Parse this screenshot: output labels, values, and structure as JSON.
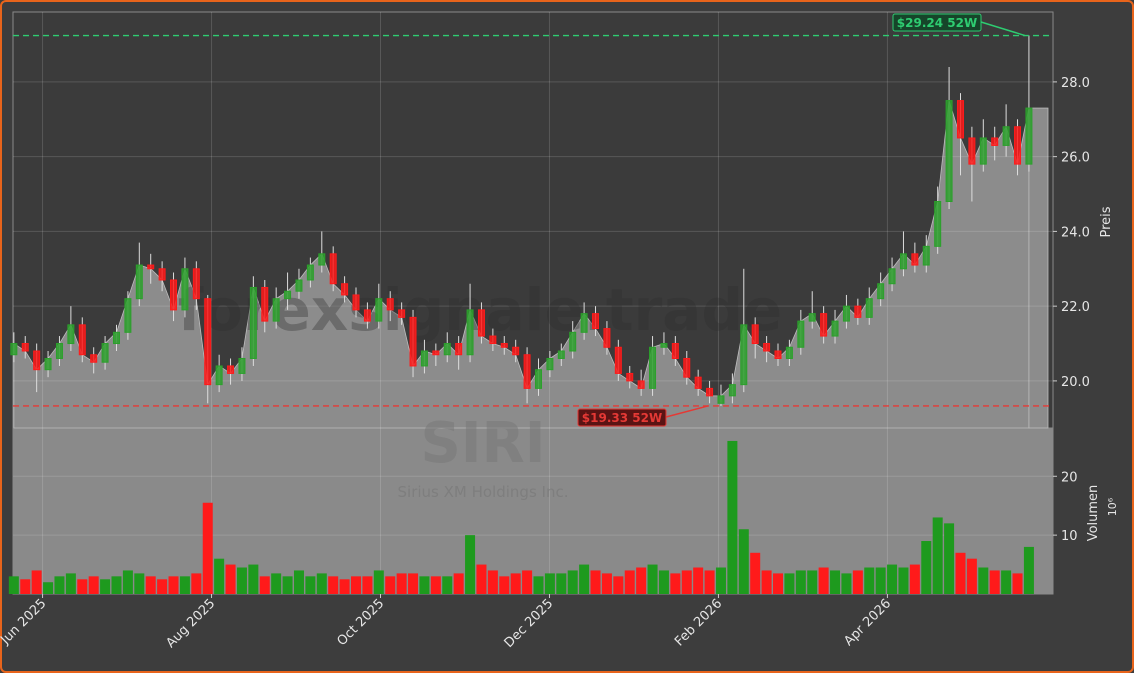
{
  "chart_data": {
    "type": "candlestick",
    "watermark": "forexsignale.trade",
    "symbol": "SIRI",
    "company": "Sirius XM Holdings Inc.",
    "ylabel": "Preis",
    "y2label": "Volumen",
    "y2unit": "10⁶",
    "up_color": "#2ca02c",
    "down_color": "#ff1a1a",
    "area_color": "#8c8c8c",
    "grid": true,
    "xlim": [
      4.65,
      16.96
    ],
    "xticks": [
      {
        "value": 5,
        "label": "Jun 2025"
      },
      {
        "value": 7,
        "label": "Aug 2025"
      },
      {
        "value": 9,
        "label": "Oct 2025"
      },
      {
        "value": 11,
        "label": "Dec 2025"
      },
      {
        "value": 13,
        "label": "Feb 2026"
      },
      {
        "value": 15,
        "label": "Apr 2026"
      }
    ],
    "ylim": [
      18.74,
      29.87
    ],
    "yticks": [
      {
        "value": 20,
        "label": "20.0"
      },
      {
        "value": 22,
        "label": "22.0"
      },
      {
        "value": 24,
        "label": "24.0"
      },
      {
        "value": 26,
        "label": "26.0"
      },
      {
        "value": 28,
        "label": "28.0"
      }
    ],
    "y2lim": [
      0,
      28.2
    ],
    "y2ticks": [
      10,
      20
    ],
    "annotations": [
      {
        "value": 29.24,
        "label": "$29.24 52W",
        "color": "#2ecc71"
      },
      {
        "value": 19.33,
        "label": "$19.33 52W",
        "color": "#e53935"
      }
    ],
    "x": [
      4.66,
      4.795,
      4.93,
      5.065,
      5.2,
      5.335,
      5.47,
      5.605,
      5.74,
      5.875,
      6.01,
      6.145,
      6.28,
      6.415,
      6.55,
      6.685,
      6.82,
      6.955,
      7.09,
      7.225,
      7.36,
      7.495,
      7.63,
      7.765,
      7.9,
      8.035,
      8.17,
      8.305,
      8.44,
      8.575,
      8.71,
      8.845,
      8.98,
      9.115,
      9.25,
      9.385,
      9.52,
      9.655,
      9.79,
      9.925,
      10.06,
      10.195,
      10.33,
      10.465,
      10.6,
      10.735,
      10.87,
      11.005,
      11.14,
      11.275,
      11.41,
      11.545,
      11.68,
      11.815,
      11.95,
      12.085,
      12.22,
      12.355,
      12.49,
      12.625,
      12.76,
      12.895,
      13.03,
      13.165,
      13.3,
      13.435,
      13.57,
      13.705,
      13.84,
      13.975,
      14.11,
      14.245,
      14.38,
      14.515,
      14.65,
      14.785,
      14.92,
      15.055,
      15.19,
      15.325,
      15.46,
      15.595,
      15.73,
      15.865,
      16.0,
      16.135,
      16.27,
      16.405,
      16.54,
      16.675
    ],
    "open": [
      20.7,
      21.0,
      20.8,
      20.3,
      20.6,
      21.0,
      21.5,
      20.7,
      20.5,
      21.0,
      21.3,
      22.2,
      23.1,
      23.0,
      22.7,
      21.9,
      23.0,
      22.2,
      19.9,
      20.4,
      20.2,
      20.6,
      22.5,
      21.6,
      22.2,
      22.4,
      22.7,
      23.1,
      23.4,
      22.6,
      22.3,
      21.9,
      21.6,
      22.2,
      21.9,
      21.7,
      20.4,
      20.8,
      20.7,
      21.0,
      20.7,
      21.9,
      21.2,
      21.0,
      20.9,
      20.7,
      19.8,
      20.3,
      20.6,
      20.8,
      21.3,
      21.8,
      21.4,
      20.9,
      20.2,
      20.0,
      19.8,
      20.9,
      21.0,
      20.6,
      20.1,
      19.8,
      19.4,
      19.6,
      19.9,
      21.5,
      21.0,
      20.8,
      20.6,
      20.9,
      21.6,
      21.8,
      21.2,
      21.6,
      22.0,
      21.7,
      22.2,
      22.6,
      23.0,
      23.4,
      23.1,
      23.6,
      24.8,
      27.5,
      26.5,
      25.8,
      26.5,
      26.3,
      26.8,
      25.8
    ],
    "high": [
      21.3,
      21.2,
      21.0,
      20.8,
      21.2,
      22.0,
      21.7,
      20.9,
      21.2,
      21.5,
      22.4,
      23.7,
      23.4,
      23.2,
      22.9,
      23.3,
      23.2,
      22.3,
      20.7,
      20.6,
      20.9,
      22.8,
      22.7,
      22.5,
      22.9,
      23.0,
      23.3,
      24.0,
      23.6,
      22.8,
      22.5,
      22.1,
      22.6,
      22.4,
      22.1,
      21.9,
      21.1,
      21.0,
      21.3,
      21.2,
      22.6,
      22.1,
      21.4,
      21.2,
      21.1,
      20.9,
      20.6,
      20.8,
      21.0,
      21.6,
      22.1,
      22.0,
      21.6,
      21.1,
      20.4,
      20.3,
      21.2,
      21.3,
      21.2,
      20.8,
      20.3,
      20.0,
      19.9,
      20.2,
      23.0,
      21.7,
      21.2,
      21.0,
      21.1,
      21.9,
      22.4,
      22.0,
      21.9,
      22.3,
      22.2,
      22.5,
      22.9,
      23.3,
      24.0,
      23.7,
      23.9,
      25.2,
      28.4,
      27.7,
      26.8,
      27.0,
      26.8,
      27.4,
      27.0,
      29.24
    ],
    "low": [
      20.5,
      20.6,
      19.7,
      20.1,
      20.4,
      20.8,
      20.5,
      20.2,
      20.3,
      20.8,
      21.1,
      22.0,
      22.6,
      22.4,
      21.6,
      21.7,
      21.9,
      19.4,
      19.7,
      19.9,
      20.0,
      20.4,
      21.3,
      21.4,
      21.9,
      22.2,
      22.5,
      22.9,
      22.4,
      22.1,
      21.7,
      21.4,
      21.4,
      21.6,
      21.5,
      20.1,
      20.2,
      20.4,
      20.5,
      20.3,
      20.5,
      21.0,
      20.8,
      20.7,
      20.5,
      19.4,
      19.6,
      20.1,
      20.4,
      20.6,
      21.1,
      21.2,
      20.7,
      20.0,
      19.8,
      19.6,
      19.6,
      20.7,
      20.4,
      19.9,
      19.6,
      19.4,
      19.33,
      19.4,
      19.7,
      20.6,
      20.5,
      20.4,
      20.4,
      20.7,
      21.4,
      21.0,
      21.0,
      21.4,
      21.5,
      21.5,
      22.0,
      22.4,
      22.8,
      22.9,
      22.9,
      23.4,
      24.6,
      25.5,
      24.8,
      25.6,
      25.9,
      26.0,
      25.5,
      25.6
    ],
    "close": [
      21.0,
      20.8,
      20.3,
      20.6,
      21.0,
      21.5,
      20.7,
      20.5,
      21.0,
      21.3,
      22.2,
      23.1,
      23.0,
      22.7,
      21.9,
      23.0,
      22.2,
      19.9,
      20.4,
      20.2,
      20.6,
      22.5,
      21.6,
      22.2,
      22.4,
      22.7,
      23.1,
      23.4,
      22.6,
      22.3,
      21.9,
      21.6,
      22.2,
      21.9,
      21.7,
      20.4,
      20.8,
      20.7,
      21.0,
      20.7,
      21.9,
      21.2,
      21.0,
      20.9,
      20.7,
      19.8,
      20.3,
      20.6,
      20.8,
      21.3,
      21.8,
      21.4,
      20.9,
      20.2,
      20.0,
      19.8,
      20.9,
      21.0,
      20.6,
      20.1,
      19.8,
      19.6,
      19.6,
      19.9,
      21.5,
      21.0,
      20.8,
      20.6,
      20.9,
      21.6,
      21.8,
      21.2,
      21.6,
      22.0,
      21.7,
      22.2,
      22.6,
      23.0,
      23.4,
      23.1,
      23.6,
      24.8,
      27.5,
      26.5,
      25.8,
      26.5,
      26.3,
      26.8,
      25.8,
      27.3
    ],
    "volume": [
      3,
      2.5,
      4,
      2,
      3,
      3.5,
      2.5,
      3,
      2.5,
      3,
      4,
      3.5,
      3,
      2.5,
      3,
      3,
      3.5,
      15.5,
      6,
      5,
      4.5,
      5,
      3,
      3.5,
      3,
      4,
      3,
      3.5,
      3,
      2.5,
      3,
      3,
      4,
      3,
      3.5,
      3.5,
      3,
      3,
      3,
      3.5,
      10,
      5,
      4,
      3,
      3.5,
      4,
      3,
      3.5,
      3.5,
      4,
      5,
      4,
      3.5,
      3,
      4,
      4.5,
      5,
      4,
      3.5,
      4,
      4.5,
      4,
      4.5,
      26,
      11,
      7,
      4,
      3.5,
      3.5,
      4,
      4,
      4.5,
      4,
      3.5,
      4,
      4.5,
      4.5,
      5,
      4.5,
      5,
      9,
      13,
      12,
      7,
      6,
      4.5,
      4,
      4,
      3.5,
      8
    ]
  }
}
